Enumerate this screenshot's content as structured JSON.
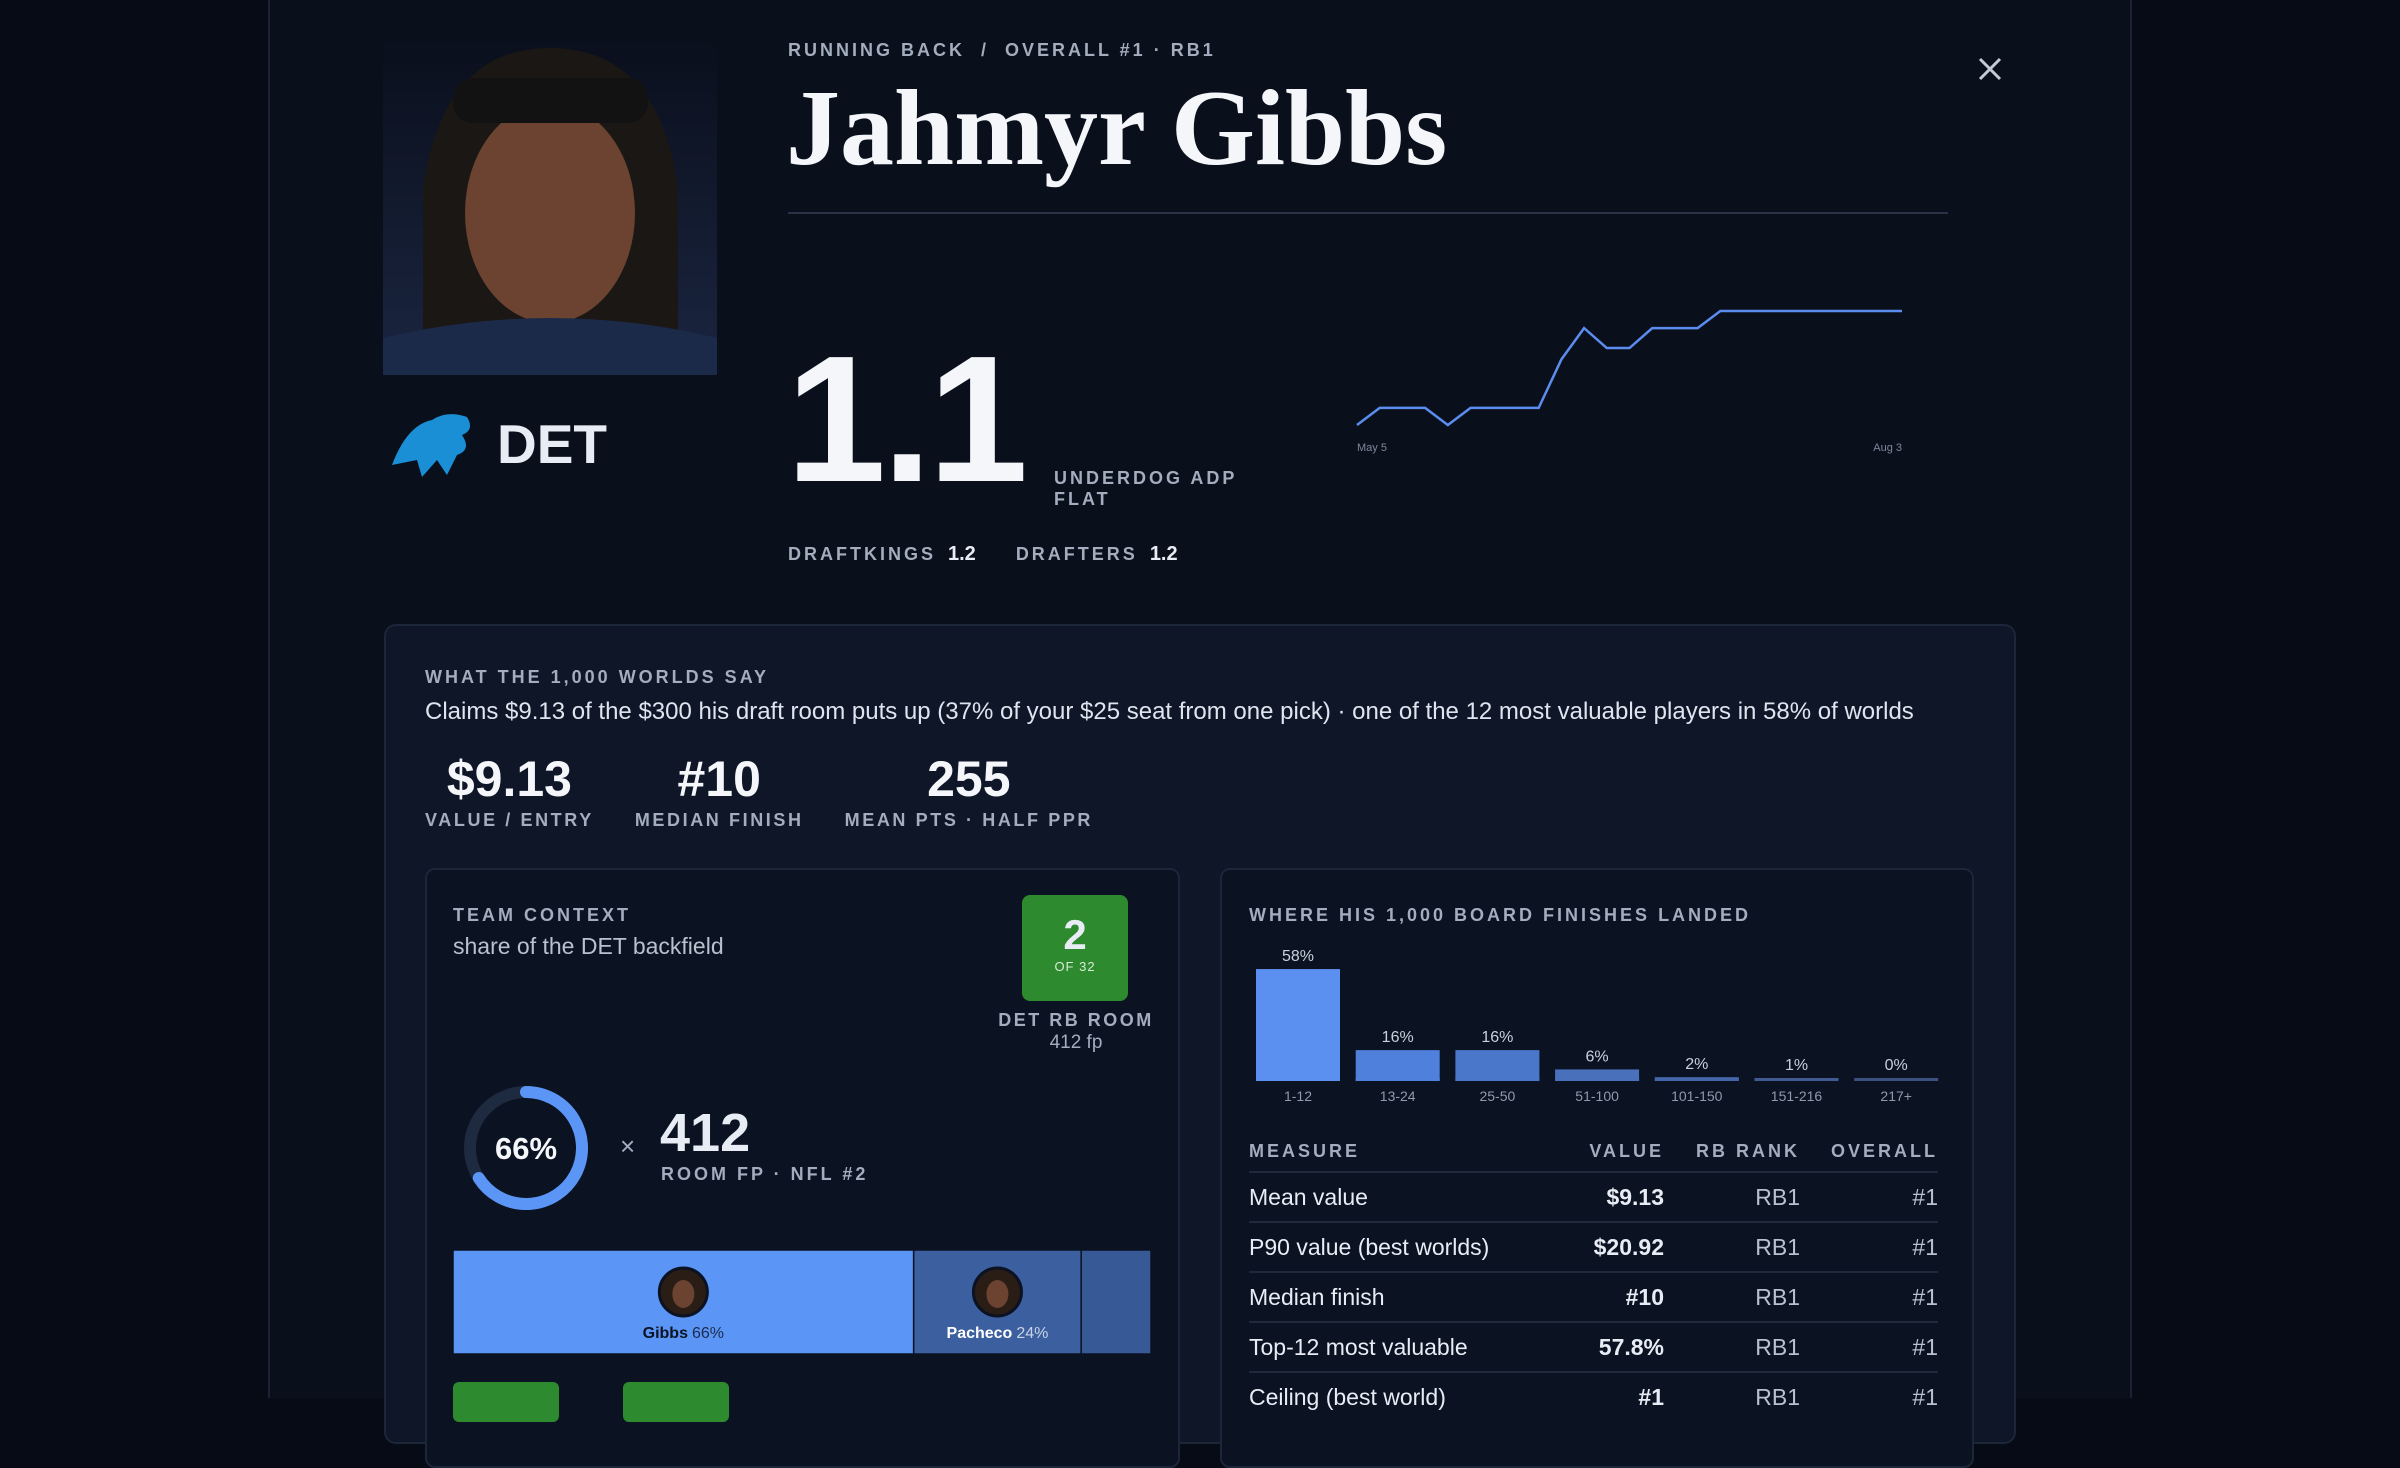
{
  "header": {
    "kicker": "RUNNING BACK  /  OVERALL #1 · RB1",
    "name": "Jahmyr Gibbs",
    "team": "DET"
  },
  "adp": {
    "value": 1.1,
    "label": "UNDERDOG ADP",
    "trend": "FLAT",
    "others": [
      {
        "name": "DRAFTKINGS",
        "value": 1.2
      },
      {
        "name": "DRAFTERS",
        "value": 1.2
      }
    ]
  },
  "chart_data": [
    {
      "type": "line",
      "categories": [
        "May 5",
        null,
        null,
        null,
        null,
        null,
        null,
        null,
        null,
        null,
        null,
        null,
        null,
        null,
        null,
        null,
        null,
        null,
        null,
        null,
        null,
        null,
        null,
        null,
        "Aug 3"
      ],
      "series": [
        {
          "color": "#5b8def",
          "values": [
            1.5,
            1.44,
            1.44,
            1.44,
            1.5,
            1.44,
            1.44,
            1.44,
            1.44,
            1.27,
            1.16,
            1.23,
            1.23,
            1.16,
            1.16,
            1.16,
            1.1,
            1.1,
            1.1,
            1.1,
            1.1,
            1.1,
            1.1,
            1.1,
            1.1
          ]
        }
      ],
      "ylim": [
        1.5,
        1.1
      ]
    },
    {
      "type": "bar",
      "title": "WHERE HIS 1,000 BOARD FINISHES LANDED",
      "categories": [
        "1-12",
        "13-24",
        "25-50",
        "51-100",
        "101-150",
        "151-216",
        "217+"
      ],
      "values": [
        58,
        16,
        16,
        6,
        2,
        1,
        0
      ],
      "value_labels": [
        "58%",
        "16%",
        "16%",
        "6%",
        "2%",
        "1%",
        "0%"
      ],
      "colors": [
        "#5b8ff0",
        "#4f80dc",
        "#4b77cb",
        "#4870bb",
        "#4466a8",
        "#405b92",
        "#3c5180"
      ]
    }
  ],
  "worlds": {
    "heading": "WHAT THE 1,000 WORLDS SAY",
    "summary": "Claims $9.13 of the $300 his draft room puts up (37% of your $25 seat from one pick) · one of the 12 most valuable players in 58% of worlds",
    "stats": [
      {
        "value": "$9.13",
        "label": "VALUE / ENTRY"
      },
      {
        "value": "#10",
        "label": "MEDIAN FINISH"
      },
      {
        "value": 255,
        "label": "MEAN PTS · HALF PPR"
      }
    ]
  },
  "team_context": {
    "heading": "TEAM CONTEXT",
    "subheading": "share of the DET backfield",
    "room_rank": 2,
    "room_rank_of": "OF 32",
    "room_label": "DET RB ROOM",
    "room_fp": "412 fp",
    "share": 66,
    "share_label": "66%",
    "times": "×",
    "room_total": 412,
    "room_total_label": "ROOM FP · NFL #2",
    "segments": [
      {
        "name": "Gibbs",
        "value": 66,
        "value_label": "66%",
        "color": "#5b96f7"
      },
      {
        "name": "Pacheco",
        "value": 24,
        "value_label": "24%",
        "color": "#3c5f9f"
      },
      {
        "value": 10,
        "color": "#375a96"
      }
    ]
  },
  "finish_table": {
    "columns": [
      "MEASURE",
      "VALUE",
      "RB RANK",
      "OVERALL"
    ],
    "rows": [
      [
        "Mean value",
        "$9.13",
        "RB1",
        "#1"
      ],
      [
        "P90 value (best worlds)",
        "$20.92",
        "RB1",
        "#1"
      ],
      [
        "Median finish",
        "#10",
        "RB1",
        "#1"
      ],
      [
        "Top-12 most valuable",
        "57.8%",
        "RB1",
        "#1"
      ],
      [
        "Ceiling (best world)",
        "#1",
        "RB1",
        "#1"
      ]
    ]
  }
}
